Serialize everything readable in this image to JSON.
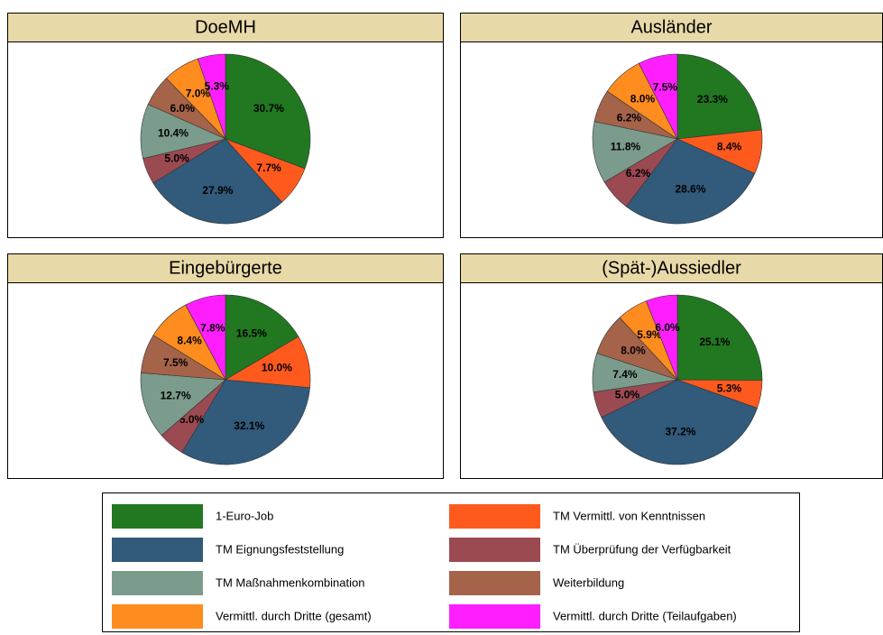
{
  "legend": {
    "categories": [
      "1-Euro-Job",
      "TM Vermittl. von Kenntnissen",
      "TM Eignungsfeststellung",
      "TM Überprüfung der Verfügbarkeit",
      "TM Maßnahmenkombination",
      "Weiterbildung",
      "Vermittl. durch Dritte (gesamt)",
      "Vermittl. durch Dritte (Teilaufgaben)"
    ],
    "colors": [
      "#217821",
      "#ff5a1e",
      "#315a7b",
      "#9c4a52",
      "#7b9c8c",
      "#a5634a",
      "#ff8c1e",
      "#ff1eff"
    ]
  },
  "chart_data": [
    {
      "type": "pie",
      "title": "DoeMH",
      "values": [
        30.7,
        7.7,
        27.9,
        5.0,
        10.4,
        6.0,
        7.0,
        5.3
      ],
      "value_labels": [
        "30.7%",
        "7.7%",
        "27.9%",
        "5.0%",
        "10.4%",
        "6.0%",
        "7.0%",
        "5.3%"
      ]
    },
    {
      "type": "pie",
      "title": "Ausländer",
      "values": [
        23.3,
        8.4,
        28.6,
        6.2,
        11.8,
        6.2,
        8.0,
        7.5
      ],
      "value_labels": [
        "23.3%",
        "8.4%",
        "28.6%",
        "6.2%",
        "11.8%",
        "6.2%",
        "8.0%",
        "7.5%"
      ]
    },
    {
      "type": "pie",
      "title": "Eingebürgerte",
      "values": [
        16.5,
        10.0,
        32.1,
        5.0,
        12.7,
        7.5,
        8.4,
        7.8
      ],
      "value_labels": [
        "16.5%",
        "10.0%",
        "32.1%",
        "5.0%",
        "12.7%",
        "7.5%",
        "8.4%",
        "7.8%"
      ]
    },
    {
      "type": "pie",
      "title": "(Spät-)Aussiedler",
      "values": [
        25.1,
        5.3,
        37.2,
        5.0,
        7.4,
        8.0,
        5.9,
        6.0
      ],
      "value_labels": [
        "25.1%",
        "5.3%",
        "37.2%",
        "5.0%",
        "7.4%",
        "8.0%",
        "5.9%",
        "6.0%"
      ]
    }
  ]
}
